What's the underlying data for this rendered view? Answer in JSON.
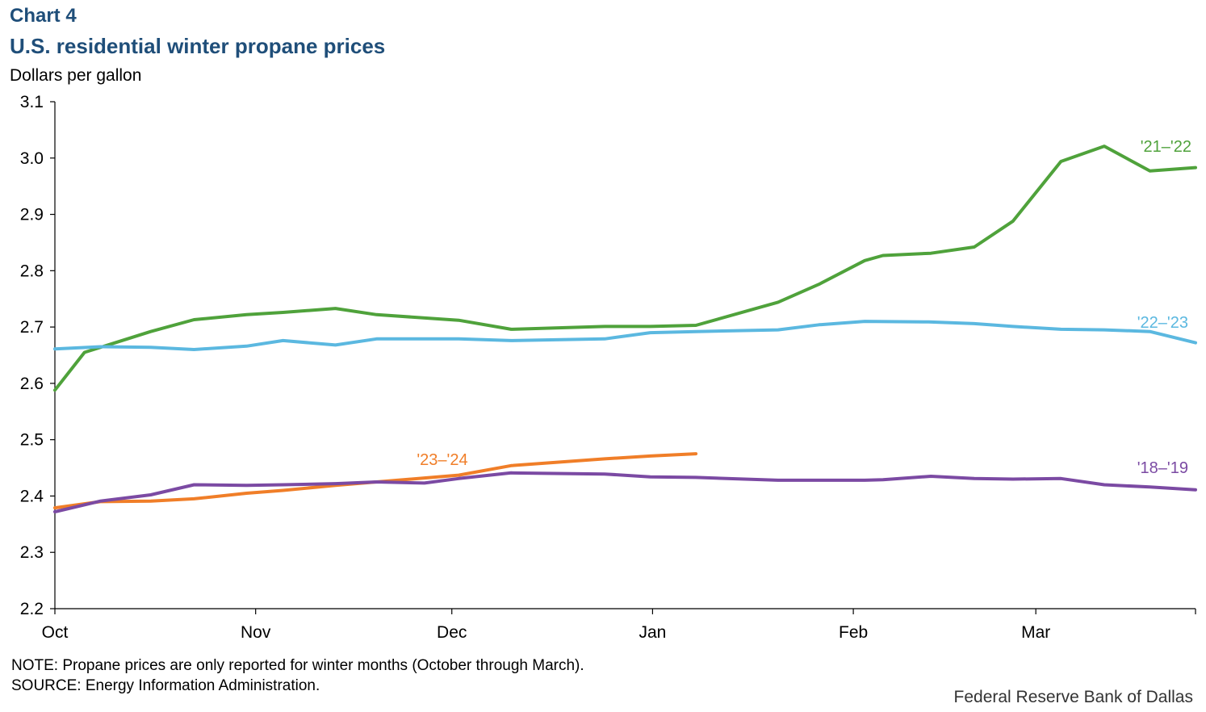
{
  "header": {
    "chart_label": "Chart 4",
    "title": "U.S. residential winter propane prices",
    "y_unit": "Dollars per gallon"
  },
  "footer": {
    "note": "NOTE: Propane prices are only reported for winter months (October through March).",
    "source": "SOURCE: Energy Information Administration.",
    "credit": "Federal Reserve Bank of Dallas"
  },
  "chart_data": {
    "type": "line",
    "title": "U.S. residential winter propane prices",
    "ylabel": "Dollars per gallon",
    "xlabel": "",
    "ylim": [
      2.2,
      3.1
    ],
    "yticks": [
      2.2,
      2.3,
      2.4,
      2.5,
      2.6,
      2.7,
      2.8,
      2.9,
      3.0,
      3.1
    ],
    "ytick_labels": [
      "2.2",
      "2.3",
      "2.4",
      "2.5",
      "2.6",
      "2.7",
      "2.8",
      "2.9",
      "3.0",
      "3.1"
    ],
    "x_unit": "week of winter season",
    "xlim": [
      0,
      25
    ],
    "x_month_ticks": [
      {
        "label": "Oct",
        "week": 0
      },
      {
        "label": "Nov",
        "week": 4.4
      },
      {
        "label": "Dec",
        "week": 8.7
      },
      {
        "label": "Jan",
        "week": 13.1
      },
      {
        "label": "Feb",
        "week": 17.5
      },
      {
        "label": "Mar",
        "week": 21.5
      }
    ],
    "x_end_tick": 25,
    "grid": false,
    "legend": "inline labels",
    "series": [
      {
        "name": "'21–'22",
        "color": "#4fa23b",
        "x": [
          0,
          0.65,
          2.1,
          3.05,
          4.2,
          5.0,
          6.15,
          7.05,
          8.85,
          10.0,
          12.05,
          13.05,
          14.05,
          15.85,
          16.75,
          17.75,
          18.15,
          19.2,
          20.15,
          21.0,
          22.05,
          23.0,
          24.0,
          25.0
        ],
        "values": [
          2.588,
          2.655,
          2.692,
          2.713,
          2.722,
          2.726,
          2.733,
          2.722,
          2.712,
          2.696,
          2.701,
          2.701,
          2.703,
          2.744,
          2.776,
          2.818,
          2.827,
          2.831,
          2.842,
          2.888,
          2.994,
          3.021,
          2.977,
          2.983
        ]
      },
      {
        "name": "'22–'23",
        "color": "#5bb8e0",
        "x": [
          0,
          1.0,
          2.1,
          3.05,
          4.2,
          5.0,
          6.15,
          7.05,
          8.85,
          10.0,
          12.05,
          13.05,
          14.05,
          15.85,
          16.75,
          17.75,
          19.15,
          20.15,
          21.0,
          22.05,
          23.0,
          24.0,
          25.0
        ],
        "values": [
          2.661,
          2.665,
          2.664,
          2.66,
          2.666,
          2.676,
          2.668,
          2.679,
          2.679,
          2.676,
          2.679,
          2.69,
          2.692,
          2.695,
          2.704,
          2.71,
          2.709,
          2.706,
          2.701,
          2.696,
          2.695,
          2.692,
          2.672
        ]
      },
      {
        "name": "'23–'24",
        "color": "#f07e28",
        "x": [
          0,
          1.0,
          2.1,
          3.05,
          4.2,
          5.0,
          6.15,
          7.05,
          8.1,
          8.85,
          10.0,
          12.05,
          13.05,
          14.05
        ],
        "values": [
          2.379,
          2.39,
          2.391,
          2.395,
          2.405,
          2.41,
          2.419,
          2.425,
          2.432,
          2.437,
          2.454,
          2.466,
          2.471,
          2.475
        ]
      },
      {
        "name": "'18–'19",
        "color": "#7b4aa3",
        "x": [
          0,
          1.0,
          2.1,
          3.05,
          4.2,
          5.0,
          6.15,
          7.05,
          8.1,
          8.85,
          10.0,
          12.05,
          13.05,
          14.05,
          15.85,
          16.75,
          17.75,
          18.15,
          19.2,
          20.15,
          21.0,
          22.05,
          23.0,
          24.0,
          25.0
        ],
        "values": [
          2.372,
          2.391,
          2.402,
          2.42,
          2.419,
          2.42,
          2.422,
          2.425,
          2.423,
          2.431,
          2.441,
          2.439,
          2.434,
          2.433,
          2.428,
          2.428,
          2.428,
          2.429,
          2.435,
          2.431,
          2.43,
          2.431,
          2.42,
          2.416,
          2.411
        ]
      }
    ]
  }
}
